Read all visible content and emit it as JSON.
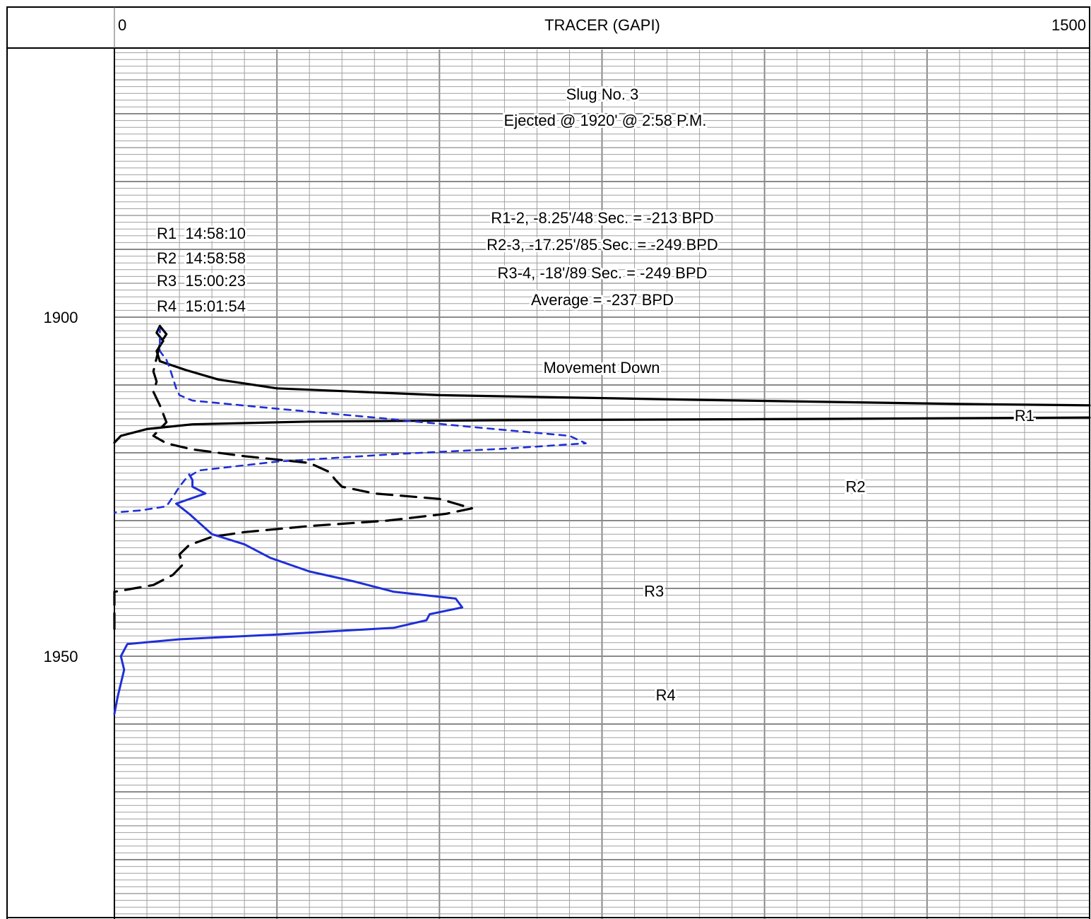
{
  "header": {
    "scale_min_label": "0",
    "scale_max_label": "1500",
    "track_title": "TRACER (GAPI)"
  },
  "depth_labels": [
    {
      "depth": 1900,
      "label": "1900"
    },
    {
      "depth": 1950,
      "label": "1950"
    }
  ],
  "annotations": {
    "title_line1": "Slug No. 3",
    "title_line2": "Ejected @ 1920' @ 2:58 P.M.",
    "rate_lines": [
      "R1-2, -8.25'/48 Sec. = -213 BPD",
      "R2-3, -17.25'/85 Sec. = -249 BPD",
      "R3-4, -18'/89 Sec. = -249 BPD",
      "Average = -237 BPD"
    ],
    "run_times": [
      "R1  14:58:10",
      "R2  14:58:58",
      "R3  15:00:23",
      "R4  15:01:54"
    ],
    "movement": "Movement Down",
    "curve_labels": [
      {
        "name": "R1",
        "x": 1400,
        "depth": 1915.3
      },
      {
        "name": "R2",
        "x": 1140,
        "depth": 1925.8
      },
      {
        "name": "R3",
        "x": 830,
        "depth": 1941.2
      },
      {
        "name": "R4",
        "x": 848,
        "depth": 1956.5
      }
    ]
  },
  "colors": {
    "grid": "#a0a0a0",
    "frame": "#000000",
    "r1": "#000000",
    "r2": "#1f2fd8",
    "r3": "#000000",
    "r4": "#1f2fd8"
  },
  "chart_data": {
    "type": "line",
    "title": "TRACER (GAPI)",
    "xlabel": "TRACER (GAPI)",
    "ylabel": "",
    "xlim": [
      0,
      1500
    ],
    "ylim": [
      1875,
      1985
    ],
    "y_inverted": true,
    "grid": true,
    "series": [
      {
        "name": "R1",
        "style": "solid",
        "points": [
          [
            70,
            1901.3
          ],
          [
            65,
            1902.3
          ],
          [
            75,
            1903.5
          ],
          [
            65,
            1905.0
          ],
          [
            70,
            1906.5
          ],
          [
            110,
            1907.8
          ],
          [
            160,
            1909.2
          ],
          [
            250,
            1910.5
          ],
          [
            500,
            1911.5
          ],
          [
            900,
            1912.2
          ],
          [
            1300,
            1912.8
          ],
          [
            1500,
            1913.0
          ]
        ]
      },
      {
        "name": "R1 return",
        "style": "solid",
        "points": [
          [
            1500,
            1914.8
          ],
          [
            1100,
            1915.0
          ],
          [
            600,
            1915.2
          ],
          [
            300,
            1915.4
          ],
          [
            120,
            1915.8
          ],
          [
            50,
            1916.5
          ],
          [
            10,
            1917.5
          ],
          [
            0,
            1918.5
          ]
        ]
      },
      {
        "name": "R2",
        "style": "dashed",
        "points": [
          [
            70,
            1901.3
          ],
          [
            70,
            1905.0
          ],
          [
            80,
            1906.3
          ],
          [
            85,
            1907.5
          ],
          [
            90,
            1909.0
          ],
          [
            95,
            1910.5
          ],
          [
            100,
            1911.5
          ],
          [
            120,
            1912.3
          ],
          [
            250,
            1913.5
          ],
          [
            400,
            1914.8
          ],
          [
            550,
            1916.2
          ],
          [
            700,
            1917.5
          ],
          [
            725,
            1918.6
          ],
          [
            600,
            1919.4
          ],
          [
            430,
            1920.2
          ],
          [
            250,
            1921.3
          ],
          [
            130,
            1922.6
          ],
          [
            110,
            1923.8
          ],
          [
            100,
            1925.0
          ],
          [
            90,
            1926.5
          ],
          [
            80,
            1927.9
          ],
          [
            40,
            1928.5
          ],
          [
            0,
            1928.8
          ]
        ]
      },
      {
        "name": "R3",
        "style": "dashed",
        "points": [
          [
            70,
            1901.3
          ],
          [
            80,
            1902.5
          ],
          [
            70,
            1904.0
          ],
          [
            65,
            1906.0
          ],
          [
            60,
            1908.0
          ],
          [
            65,
            1909.5
          ],
          [
            60,
            1911.0
          ],
          [
            70,
            1913.0
          ],
          [
            80,
            1915.5
          ],
          [
            60,
            1917.5
          ],
          [
            80,
            1918.6
          ],
          [
            120,
            1919.5
          ],
          [
            200,
            1920.5
          ],
          [
            300,
            1921.5
          ],
          [
            330,
            1922.8
          ],
          [
            340,
            1924.0
          ],
          [
            350,
            1925.0
          ],
          [
            400,
            1926.0
          ],
          [
            500,
            1926.8
          ],
          [
            550,
            1928.2
          ],
          [
            510,
            1929.0
          ],
          [
            420,
            1930.0
          ],
          [
            300,
            1930.8
          ],
          [
            200,
            1931.7
          ],
          [
            150,
            1932.4
          ],
          [
            115,
            1933.6
          ],
          [
            100,
            1935.0
          ],
          [
            105,
            1936.5
          ],
          [
            90,
            1938.0
          ],
          [
            60,
            1939.5
          ],
          [
            30,
            1940.0
          ],
          [
            0,
            1940.5
          ],
          [
            0,
            1942.5
          ],
          [
            0,
            1944.5
          ],
          [
            0,
            1946.0
          ]
        ]
      },
      {
        "name": "R4",
        "style": "solid",
        "points": [
          [
            115,
            1923.2
          ],
          [
            120,
            1924.0
          ],
          [
            120,
            1925.0
          ],
          [
            140,
            1926.0
          ],
          [
            95,
            1927.5
          ],
          [
            115,
            1929.0
          ],
          [
            150,
            1932.0
          ],
          [
            200,
            1933.5
          ],
          [
            240,
            1935.5
          ],
          [
            300,
            1937.5
          ],
          [
            370,
            1939.0
          ],
          [
            430,
            1940.5
          ],
          [
            525,
            1941.5
          ],
          [
            535,
            1942.8
          ],
          [
            485,
            1943.8
          ],
          [
            480,
            1944.7
          ],
          [
            430,
            1945.8
          ],
          [
            250,
            1946.8
          ],
          [
            100,
            1947.5
          ],
          [
            20,
            1948.2
          ],
          [
            10,
            1950.0
          ],
          [
            15,
            1952.0
          ],
          [
            10,
            1954.0
          ],
          [
            5,
            1956.0
          ],
          [
            0,
            1958.5
          ]
        ]
      }
    ],
    "annotations": [
      {
        "text": "Slug No. 3",
        "x": 750,
        "depth": 1882.5
      },
      {
        "text": "Ejected @ 1920' @ 2:58 P.M.",
        "x": 750,
        "depth": 1886.5
      },
      {
        "text": "Movement Down",
        "x": 750,
        "depth": 1907.5
      }
    ]
  }
}
